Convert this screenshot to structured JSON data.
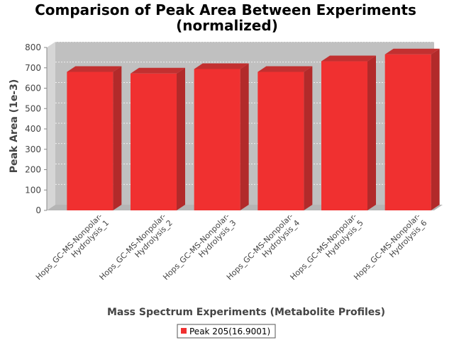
{
  "chart_data": {
    "type": "bar",
    "title": "Comparison of Peak Area Between Experiments",
    "subtitle": "(normalized)",
    "xlabel": "Mass Spectrum Experiments (Metabolite Profiles)",
    "ylabel": "Peak Area (1e-3)",
    "categories": [
      [
        "Hops_GC-MS-Nonpolar-",
        "Hydrolysis_1"
      ],
      [
        "Hops_GC-MS-Nonpolar-",
        "Hydrolysis_2"
      ],
      [
        "Hops_GC-MS-Nonpolar-",
        "Hydrolysis_3"
      ],
      [
        "Hops_GC-MS-Nonpolar-",
        "Hydrolysis_4"
      ],
      [
        "Hops_GC-MS-Nonpolar-",
        "Hydrolysis_5"
      ],
      [
        "Hops_GC-MS-Nonpolar-",
        "Hydrolysis_6"
      ]
    ],
    "series": [
      {
        "name": "Peak 205(16.9001)",
        "values": [
          680,
          672,
          694,
          680,
          732,
          766
        ],
        "color": "#f03030"
      }
    ],
    "ylim": [
      0,
      800
    ],
    "yticks": [
      0,
      100,
      200,
      300,
      400,
      500,
      600,
      700,
      800
    ],
    "grid": true,
    "legend_position": "bottom",
    "style": "3d"
  }
}
